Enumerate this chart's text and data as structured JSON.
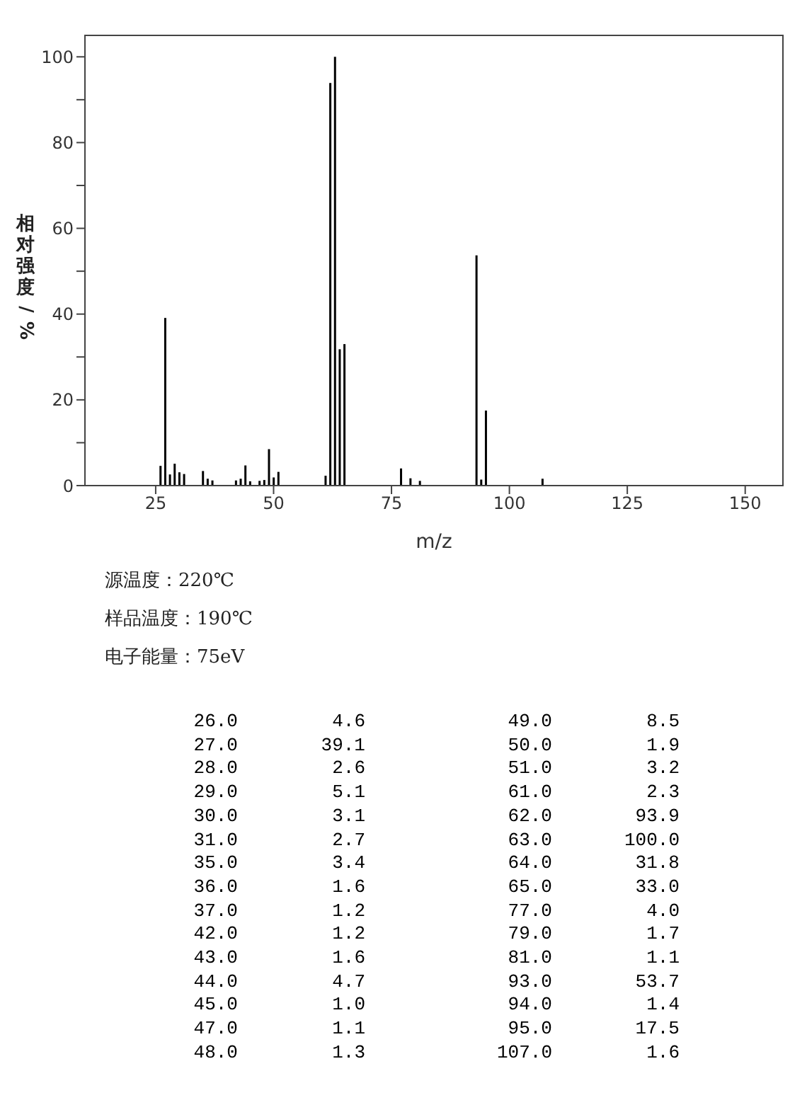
{
  "chart_data": {
    "type": "bar",
    "xlabel": "m/z",
    "ylabel": "相对强度/%",
    "x": [
      26,
      27,
      28,
      29,
      30,
      31,
      35,
      36,
      37,
      42,
      43,
      44,
      45,
      47,
      48,
      49,
      50,
      51,
      61,
      62,
      63,
      64,
      65,
      77,
      79,
      81,
      93,
      94,
      95,
      107
    ],
    "values": [
      4.6,
      39.1,
      2.6,
      5.1,
      3.1,
      2.7,
      3.4,
      1.6,
      1.2,
      1.2,
      1.6,
      4.7,
      1.0,
      1.1,
      1.3,
      8.5,
      1.9,
      3.2,
      2.3,
      93.9,
      100.0,
      31.8,
      33.0,
      4.0,
      1.7,
      1.1,
      53.7,
      1.4,
      17.5,
      1.6
    ],
    "color": "#000000",
    "xlim": [
      10,
      158
    ],
    "xticks": [
      25,
      50,
      75,
      100,
      125,
      150
    ],
    "ylim": [
      0,
      105
    ],
    "yticks": [
      0,
      {
        "value": 10,
        "label": null
      },
      20,
      {
        "value": 30,
        "label": null
      },
      40,
      {
        "value": 50,
        "label": null
      },
      60,
      {
        "value": 70,
        "label": null
      },
      80,
      {
        "value": 90,
        "label": null
      },
      100
    ],
    "annotations": [
      "源温度：220℃",
      "样品温度：190℃",
      "电子能量：75eV",
      "26.0",
      "4.6",
      "49.0",
      "8.5",
      "27.0",
      "39.1",
      "50.0",
      "1.9",
      "28.0",
      "2.6",
      "51.0",
      "3.2",
      "29.0",
      "5.1",
      "61.0",
      "2.3",
      "30.0",
      "3.1",
      "62.0",
      "93.9",
      "31.0",
      "2.7",
      "63.0",
      "100.0",
      "35.0",
      "3.4",
      "64.0",
      "31.8",
      "36.0",
      "1.6",
      "65.0",
      "33.0",
      "37.0",
      "1.2",
      "77.0",
      "4.0",
      "42.0",
      "1.2",
      "79.0",
      "1.7",
      "43.0",
      "1.6",
      "81.0",
      "1.1",
      "44.0",
      "4.7",
      "93.0",
      "53.7",
      "45.0",
      "1.0",
      "94.0",
      "1.4",
      "47.0",
      "1.1",
      "95.0",
      "17.5",
      "48.0",
      "1.3",
      "107.0",
      "1.6"
    ]
  }
}
